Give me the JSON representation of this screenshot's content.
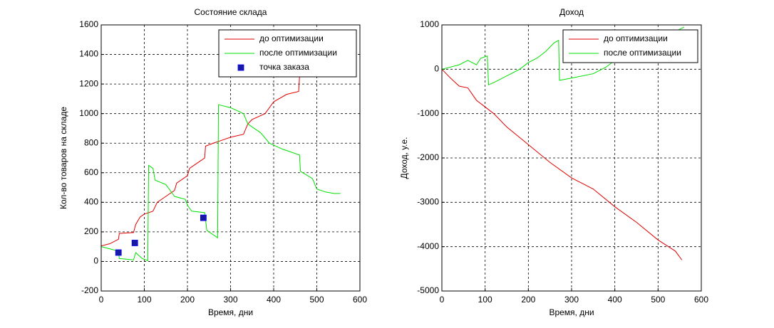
{
  "chart_data": [
    {
      "type": "line",
      "title": "Состояние склада",
      "xlabel": "Время, дни",
      "ylabel": "Кол-во товаров на складе",
      "xlim": [
        0,
        600
      ],
      "xticks": [
        0,
        100,
        200,
        300,
        400,
        500,
        600
      ],
      "ylim": [
        -200,
        1600
      ],
      "yticks": [
        -200,
        0,
        200,
        400,
        600,
        800,
        1000,
        1200,
        1400,
        1600
      ],
      "grid": true,
      "legend": "upper right",
      "series": [
        {
          "name": "до оптимизации",
          "color": "#e00000",
          "x": [
            0,
            20,
            40,
            42,
            75,
            80,
            90,
            100,
            120,
            130,
            150,
            170,
            175,
            200,
            205,
            220,
            230,
            240,
            242,
            260,
            280,
            300,
            330,
            340,
            350,
            380,
            400,
            430,
            458,
            460
          ],
          "values": [
            105,
            120,
            150,
            190,
            195,
            250,
            300,
            320,
            340,
            400,
            440,
            480,
            530,
            580,
            630,
            660,
            680,
            700,
            780,
            800,
            820,
            840,
            860,
            930,
            960,
            1000,
            1080,
            1130,
            1150,
            1250
          ]
        },
        {
          "name": "после оптимизации",
          "color": "#00e000",
          "x": [
            0,
            20,
            40,
            42,
            60,
            75,
            80,
            95,
            108,
            110,
            120,
            125,
            150,
            165,
            170,
            195,
            200,
            210,
            240,
            245,
            260,
            270,
            272,
            300,
            330,
            340,
            370,
            390,
            420,
            450,
            460,
            462,
            490,
            500,
            520,
            540,
            555
          ],
          "values": [
            100,
            85,
            70,
            20,
            15,
            10,
            60,
            20,
            5,
            650,
            630,
            550,
            520,
            460,
            440,
            420,
            380,
            340,
            330,
            210,
            180,
            160,
            1060,
            1040,
            1000,
            930,
            870,
            800,
            760,
            730,
            720,
            610,
            560,
            490,
            470,
            460,
            460
          ]
        },
        {
          "name": "точка заказа",
          "color": "#1a1aa0",
          "marker": "square",
          "x": [
            40,
            78,
            237
          ],
          "values": [
            60,
            125,
            295
          ]
        }
      ]
    },
    {
      "type": "line",
      "title": "Доход",
      "xlabel": "Время, дни",
      "ylabel": "Доход, у.е.",
      "xlim": [
        0,
        600
      ],
      "xticks": [
        0,
        100,
        200,
        300,
        400,
        500,
        600
      ],
      "ylim": [
        -5000,
        1000
      ],
      "yticks": [
        -5000,
        -4000,
        -3000,
        -2000,
        -1000,
        0,
        1000
      ],
      "grid": true,
      "legend": "upper right",
      "series": [
        {
          "name": "до оптимизации",
          "color": "#e00000",
          "x": [
            0,
            20,
            40,
            60,
            80,
            100,
            120,
            150,
            200,
            250,
            300,
            350,
            400,
            450,
            500,
            540,
            555
          ],
          "values": [
            0,
            -200,
            -380,
            -420,
            -700,
            -850,
            -1000,
            -1300,
            -1700,
            -2100,
            -2450,
            -2700,
            -3100,
            -3450,
            -3850,
            -4100,
            -4300
          ]
        },
        {
          "name": "после оптимизации",
          "color": "#00e000",
          "x": [
            0,
            40,
            60,
            80,
            90,
            105,
            108,
            120,
            150,
            180,
            200,
            220,
            240,
            260,
            270,
            272,
            300,
            350,
            380,
            400,
            420,
            450,
            500,
            540,
            560
          ],
          "values": [
            0,
            100,
            200,
            100,
            250,
            300,
            -350,
            -300,
            -150,
            0,
            150,
            250,
            400,
            600,
            650,
            -250,
            -200,
            -100,
            50,
            200,
            350,
            500,
            700,
            850,
            950
          ]
        }
      ]
    }
  ]
}
